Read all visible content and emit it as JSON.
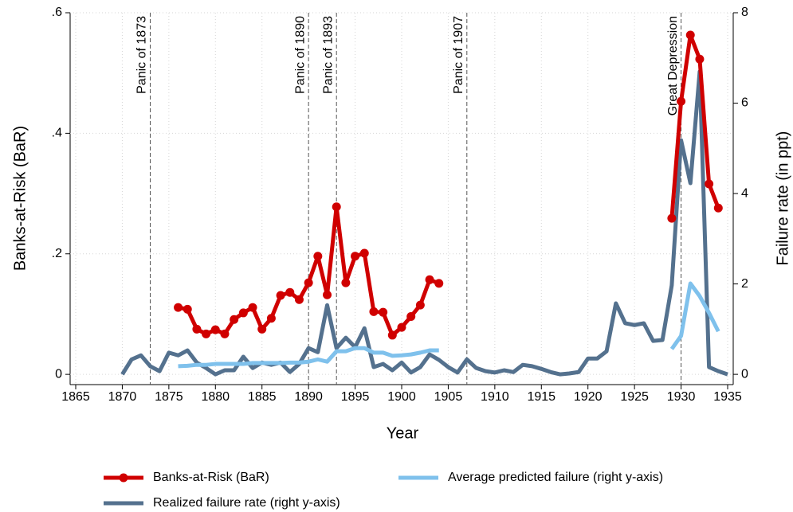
{
  "chart_data": {
    "type": "line",
    "x_label": "Year",
    "y_label": "Banks-at-Risk (BaR)",
    "y2_label": "Failure rate (in ppt)",
    "x": [
      1870,
      1871,
      1872,
      1873,
      1874,
      1875,
      1876,
      1877,
      1878,
      1879,
      1880,
      1881,
      1882,
      1883,
      1884,
      1885,
      1886,
      1887,
      1888,
      1889,
      1890,
      1891,
      1892,
      1893,
      1894,
      1895,
      1896,
      1897,
      1898,
      1899,
      1900,
      1901,
      1902,
      1903,
      1904,
      1905,
      1906,
      1907,
      1908,
      1909,
      1910,
      1911,
      1912,
      1913,
      1914,
      1915,
      1916,
      1917,
      1918,
      1919,
      1920,
      1921,
      1922,
      1923,
      1924,
      1925,
      1926,
      1927,
      1928,
      1929,
      1930,
      1931,
      1932,
      1933,
      1934,
      1935
    ],
    "series": [
      {
        "name": "Banks-at-Risk (BaR)",
        "color": "#d00000",
        "markers": true,
        "values": [
          null,
          null,
          null,
          null,
          null,
          null,
          0.111,
          0.108,
          0.075,
          0.067,
          0.074,
          0.067,
          0.091,
          0.102,
          0.111,
          0.075,
          0.093,
          0.131,
          0.136,
          0.124,
          0.152,
          0.196,
          0.132,
          0.278,
          0.152,
          0.196,
          0.201,
          0.104,
          0.103,
          0.065,
          0.078,
          0.096,
          0.115,
          0.157,
          0.151,
          null,
          null,
          null,
          null,
          null,
          null,
          null,
          null,
          null,
          null,
          null,
          null,
          null,
          null,
          null,
          null,
          null,
          null,
          null,
          null,
          null,
          null,
          null,
          null,
          0.259,
          0.453,
          0.563,
          0.523,
          0.316,
          0.276,
          null
        ]
      },
      {
        "name": "Realized failure rate (right y-axis)",
        "color": "#54718e",
        "axis": "y2",
        "markers": false,
        "values": [
          0,
          0.33,
          0.42,
          0.18,
          0.07,
          0.48,
          0.42,
          0.53,
          0.26,
          0.14,
          0,
          0.09,
          0.09,
          0.39,
          0.14,
          0.26,
          0.21,
          0.26,
          0.05,
          0.23,
          0.58,
          0.49,
          1.53,
          0.58,
          0.81,
          0.6,
          1.02,
          0.16,
          0.23,
          0.09,
          0.26,
          0.04,
          0.16,
          0.44,
          0.32,
          0.16,
          0.04,
          0.33,
          0.14,
          0.07,
          0.04,
          0.09,
          0.05,
          0.21,
          0.18,
          0.12,
          0.05,
          0,
          0.02,
          0.05,
          0.35,
          0.35,
          0.51,
          1.57,
          1.13,
          1.09,
          1.13,
          0.74,
          0.76,
          1.97,
          5.18,
          4.23,
          6.7,
          0.16,
          0.07,
          0
        ]
      },
      {
        "name": "Average predicted failure (right y-axis)",
        "color": "#7fc1ec",
        "axis": "y2",
        "markers": false,
        "values": [
          null,
          null,
          null,
          null,
          null,
          null,
          0.18,
          0.19,
          0.21,
          0.21,
          0.23,
          0.23,
          0.23,
          0.23,
          0.25,
          0.25,
          0.25,
          0.25,
          0.26,
          0.26,
          0.28,
          0.33,
          0.28,
          0.51,
          0.51,
          0.58,
          0.58,
          0.48,
          0.48,
          0.41,
          0.42,
          0.44,
          0.48,
          0.53,
          0.53,
          null,
          null,
          null,
          null,
          null,
          null,
          null,
          null,
          null,
          null,
          null,
          null,
          null,
          null,
          null,
          null,
          null,
          null,
          null,
          null,
          null,
          null,
          null,
          null,
          0.56,
          0.85,
          2.01,
          1.73,
          1.36,
          0.95,
          null
        ]
      }
    ],
    "annotations": [
      {
        "x": 1873,
        "label": "Panic of 1873"
      },
      {
        "x": 1890,
        "label": "Panic of 1890"
      },
      {
        "x": 1893,
        "label": "Panic of 1893"
      },
      {
        "x": 1907,
        "label": "Panic of 1907"
      },
      {
        "x": 1930,
        "label": "Great Depression"
      }
    ],
    "xlim": [
      1864.4,
      1935.6
    ],
    "xticks": [
      1865,
      1870,
      1875,
      1880,
      1885,
      1890,
      1895,
      1900,
      1905,
      1910,
      1915,
      1920,
      1925,
      1930,
      1935
    ],
    "ylim": [
      -0.017,
      0.6
    ],
    "yticks": [
      0,
      {
        "value": 0.2,
        "label": ".2"
      },
      {
        "value": 0.4,
        "label": ".4"
      },
      {
        "value": 0.6,
        "label": ".6"
      }
    ],
    "y2lim": [
      -0.227,
      8
    ],
    "y2ticks": [
      0,
      2,
      4,
      6,
      8
    ],
    "grid": true,
    "legend": "bottom"
  }
}
